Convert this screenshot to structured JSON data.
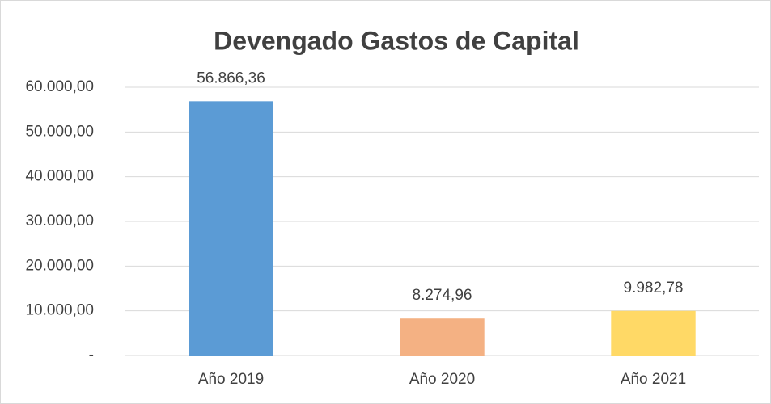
{
  "chart_data": {
    "type": "bar",
    "title": "Devengado Gastos de Capital",
    "categories": [
      "Año 2019",
      "Año 2020",
      "Año 2021"
    ],
    "values": [
      56866.36,
      8274.96,
      9982.78
    ],
    "value_labels": [
      "56.866,36",
      "8.274,96",
      "9.982,78"
    ],
    "colors": [
      "#5b9bd5",
      "#f4b183",
      "#ffd966"
    ],
    "ylim": [
      0,
      60000
    ],
    "yticks": [
      {
        "value": 0,
        "label": "-"
      },
      {
        "value": 10000,
        "label": "10.000,00"
      },
      {
        "value": 20000,
        "label": "20.000,00"
      },
      {
        "value": 30000,
        "label": "30.000,00"
      },
      {
        "value": 40000,
        "label": "40.000,00"
      },
      {
        "value": 50000,
        "label": "50.000,00"
      },
      {
        "value": 60000,
        "label": "60.000,00"
      }
    ],
    "grid": true
  }
}
